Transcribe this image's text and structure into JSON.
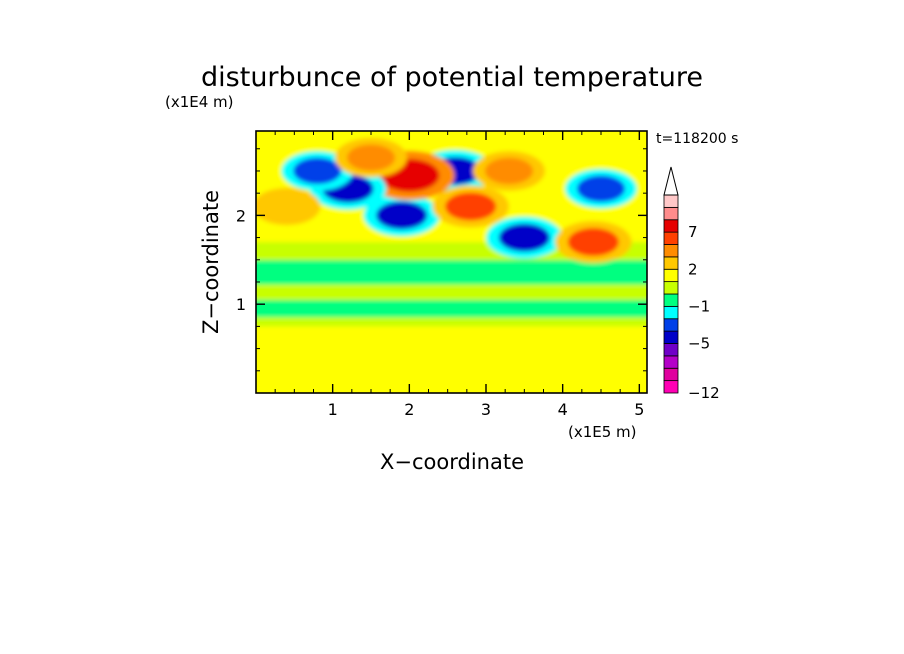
{
  "chart_data": {
    "type": "heatmap",
    "title": "disturbunce of potential temperature",
    "xlabel": "X−coordinate",
    "ylabel": "Z−coordinate",
    "x_unit": "(x1E5 m)",
    "y_unit": "(x1E4 m)",
    "time_label": "t=118200  s",
    "xlim": [
      0,
      5.1
    ],
    "ylim": [
      0,
      2.95
    ],
    "x_ticks": [
      1,
      2,
      3,
      4,
      5
    ],
    "x_tick_labels": [
      "1",
      "2",
      "3",
      "4",
      "5"
    ],
    "y_ticks": [
      1,
      2
    ],
    "y_tick_labels": [
      "1",
      "2"
    ],
    "colorbar": {
      "levels": [
        -12,
        -10,
        -8,
        -6,
        -5,
        -4,
        -3,
        -1,
        0,
        1,
        2,
        4,
        5,
        7,
        9,
        11
      ],
      "tick_values": [
        -12,
        -5,
        -1,
        2,
        7
      ],
      "tick_labels": [
        "−12",
        "−5",
        "−1",
        "2",
        "7"
      ],
      "colors": [
        "#ff00b4",
        "#e0009e",
        "#b400c8",
        "#7000c8",
        "#0000c8",
        "#0040e8",
        "#00ffff",
        "#00ff80",
        "#c8ff00",
        "#ffff00",
        "#ffc800",
        "#ff8c00",
        "#ff4000",
        "#e60000",
        "#ff8c8c",
        "#ffc8c8"
      ],
      "extend": "max"
    },
    "field": {
      "description_levels": "lower layer ~0 to 2, band near z=1 around -1 to 0, upper layer mixed -8 to 9",
      "blobs": [
        {
          "x": 2.6,
          "z": 2.5,
          "value": -5
        },
        {
          "x": 1.9,
          "z": 2.0,
          "value": -5
        },
        {
          "x": 2.0,
          "z": 2.45,
          "value": 8
        },
        {
          "x": 2.8,
          "z": 2.1,
          "value": 5
        },
        {
          "x": 3.5,
          "z": 1.75,
          "value": -5
        },
        {
          "x": 4.4,
          "z": 1.7,
          "value": 5
        },
        {
          "x": 1.2,
          "z": 2.3,
          "value": -5
        },
        {
          "x": 0.8,
          "z": 2.5,
          "value": -4
        },
        {
          "x": 3.3,
          "z": 2.5,
          "value": 4
        },
        {
          "x": 4.5,
          "z": 2.3,
          "value": -4
        },
        {
          "x": 1.5,
          "z": 2.65,
          "value": 4
        },
        {
          "x": 0.4,
          "z": 2.1,
          "value": 3
        }
      ]
    }
  }
}
